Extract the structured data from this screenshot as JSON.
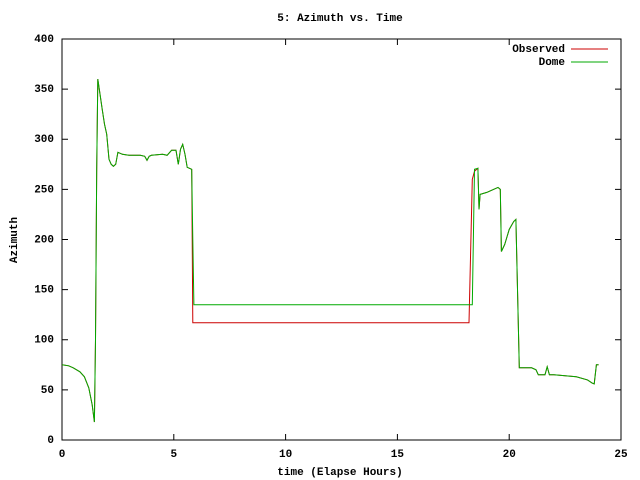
{
  "chart_data": {
    "type": "line",
    "title": "5: Azimuth vs. Time",
    "xlabel": "time (Elapse Hours)",
    "ylabel": "Azimuth",
    "x": [
      0,
      0.3,
      0.5,
      0.8,
      1.0,
      1.2,
      1.35,
      1.45,
      1.5,
      1.55,
      1.6,
      1.7,
      1.8,
      1.9,
      2.0,
      2.1,
      2.2,
      2.3,
      2.4,
      2.5,
      2.7,
      3.0,
      3.5,
      3.7,
      3.8,
      3.9,
      4.0,
      4.5,
      4.7,
      4.9,
      5.1,
      5.2,
      5.3,
      5.4,
      5.5,
      5.6,
      5.8,
      5.85,
      5.9,
      5.95,
      18.2,
      18.35,
      18.45,
      18.6,
      18.65,
      18.7,
      19.0,
      19.3,
      19.5,
      19.6,
      19.65,
      19.8,
      20.0,
      20.2,
      20.3,
      20.45,
      21.0,
      21.2,
      21.3,
      21.6,
      21.7,
      21.8,
      22.0,
      23.0,
      23.5,
      23.7,
      23.8,
      23.9,
      24.0
    ],
    "series": [
      {
        "name": "Observed",
        "color": "#cc0000",
        "values": [
          75,
          74,
          72,
          68,
          63,
          52,
          35,
          18,
          100,
          270,
          360,
          345,
          330,
          315,
          305,
          280,
          275,
          273,
          275,
          287,
          285,
          284,
          284,
          283,
          279,
          283,
          284,
          285,
          284,
          289,
          289,
          275,
          290,
          295,
          285,
          272,
          270,
          117,
          117,
          117,
          117,
          260,
          268,
          271,
          230,
          245,
          247,
          250,
          252,
          250,
          188,
          195,
          210,
          218,
          220,
          72,
          72,
          70,
          65,
          65,
          73,
          65,
          65,
          63,
          60,
          57,
          56,
          75,
          75
        ]
      },
      {
        "name": "Dome",
        "color": "#00aa00",
        "values": [
          75,
          74,
          72,
          68,
          63,
          52,
          35,
          18,
          100,
          270,
          360,
          345,
          330,
          315,
          305,
          280,
          275,
          273,
          275,
          287,
          285,
          284,
          284,
          283,
          279,
          283,
          284,
          285,
          284,
          289,
          289,
          275,
          290,
          295,
          285,
          272,
          270,
          200,
          135,
          135,
          135,
          135,
          270,
          271,
          230,
          245,
          247,
          250,
          252,
          250,
          188,
          195,
          210,
          218,
          220,
          72,
          72,
          70,
          65,
          65,
          73,
          65,
          65,
          63,
          60,
          57,
          56,
          75,
          75
        ]
      }
    ],
    "xlim": [
      0,
      25
    ],
    "xticks": [
      0,
      5,
      10,
      15,
      20,
      25
    ],
    "ylim": [
      0,
      400
    ],
    "yticks": [
      0,
      50,
      100,
      150,
      200,
      250,
      300,
      350,
      400
    ],
    "legend": "upper right"
  }
}
